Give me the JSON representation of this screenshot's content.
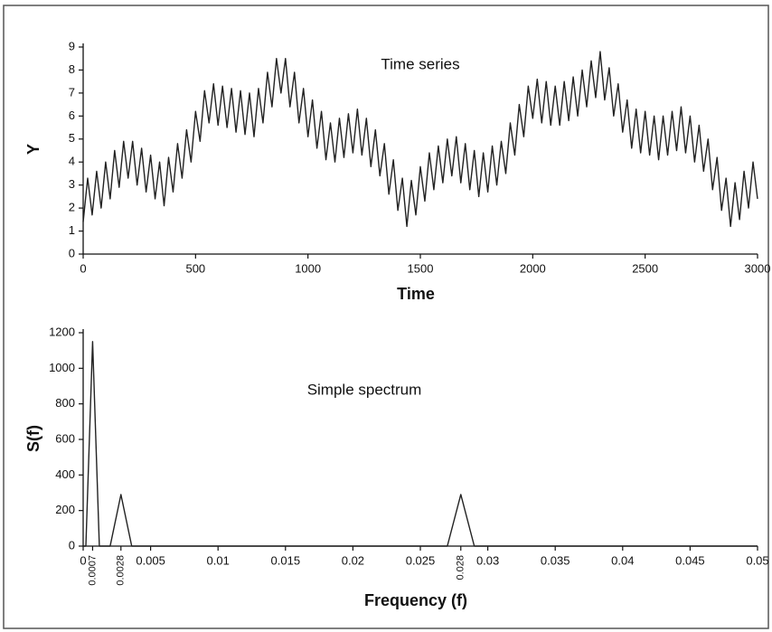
{
  "chart_data": [
    {
      "type": "line",
      "title": "Time series",
      "x_label": "Time",
      "y_label": "Y",
      "xlim": [
        0,
        3000
      ],
      "ylim": [
        0,
        9
      ],
      "xticks": [
        0,
        500,
        1000,
        1500,
        2000,
        2500,
        3000
      ],
      "yticks": [
        0,
        1,
        2,
        3,
        4,
        5,
        6,
        7,
        8,
        9
      ],
      "series": [
        {
          "color": "#222222",
          "x": [
            0,
            20,
            40,
            60,
            80,
            100,
            120,
            140,
            160,
            180,
            200,
            220,
            240,
            260,
            280,
            300,
            320,
            340,
            360,
            380,
            400,
            420,
            440,
            460,
            480,
            500,
            520,
            540,
            560,
            580,
            600,
            620,
            640,
            660,
            680,
            700,
            720,
            740,
            760,
            780,
            800,
            820,
            840,
            860,
            880,
            900,
            920,
            940,
            960,
            980,
            1000,
            1020,
            1040,
            1060,
            1080,
            1100,
            1120,
            1140,
            1160,
            1180,
            1200,
            1220,
            1240,
            1260,
            1280,
            1300,
            1320,
            1340,
            1360,
            1380,
            1400,
            1420,
            1440,
            1460,
            1480,
            1500,
            1520,
            1540,
            1560,
            1580,
            1600,
            1620,
            1640,
            1660,
            1680,
            1700,
            1720,
            1740,
            1760,
            1780,
            1800,
            1820,
            1840,
            1860,
            1880,
            1900,
            1920,
            1940,
            1960,
            1980,
            2000,
            2020,
            2040,
            2060,
            2080,
            2100,
            2120,
            2140,
            2160,
            2180,
            2200,
            2220,
            2240,
            2260,
            2280,
            2300,
            2320,
            2340,
            2360,
            2380,
            2400,
            2420,
            2440,
            2460,
            2480,
            2500,
            2520,
            2540,
            2560,
            2580,
            2600,
            2620,
            2640,
            2660,
            2680,
            2700,
            2720,
            2740,
            2760,
            2780,
            2800,
            2820,
            2840,
            2860,
            2880,
            2900,
            2920,
            2940,
            2960,
            2980,
            3000
          ],
          "values": [
            1.4,
            3.3,
            1.7,
            3.6,
            2.0,
            4.0,
            2.4,
            4.5,
            2.9,
            4.9,
            3.3,
            4.9,
            3.0,
            4.6,
            2.7,
            4.3,
            2.4,
            4.0,
            2.1,
            4.2,
            2.7,
            4.8,
            3.3,
            5.4,
            4.0,
            6.2,
            4.9,
            7.1,
            5.7,
            7.4,
            5.6,
            7.3,
            5.5,
            7.2,
            5.3,
            7.1,
            5.2,
            7.0,
            5.1,
            7.2,
            5.7,
            7.9,
            6.4,
            8.5,
            7.0,
            8.5,
            6.4,
            7.9,
            5.7,
            7.2,
            5.1,
            6.7,
            4.6,
            6.2,
            4.1,
            5.7,
            4.0,
            5.9,
            4.2,
            6.1,
            4.4,
            6.3,
            4.3,
            5.9,
            3.8,
            5.4,
            3.4,
            4.8,
            2.6,
            4.1,
            1.9,
            3.3,
            1.2,
            3.2,
            1.7,
            3.8,
            2.3,
            4.4,
            2.8,
            4.7,
            3.1,
            5.0,
            3.4,
            5.1,
            3.1,
            4.8,
            2.8,
            4.5,
            2.5,
            4.4,
            2.7,
            4.7,
            3.0,
            4.9,
            3.5,
            5.7,
            4.3,
            6.5,
            5.1,
            7.3,
            5.9,
            7.6,
            5.7,
            7.5,
            5.6,
            7.3,
            5.6,
            7.5,
            5.8,
            7.7,
            6.0,
            8.0,
            6.4,
            8.4,
            6.8,
            8.8,
            6.7,
            8.1,
            6.0,
            7.4,
            5.3,
            6.7,
            4.6,
            6.3,
            4.4,
            6.2,
            4.3,
            6.0,
            4.1,
            6.0,
            4.3,
            6.2,
            4.5,
            6.4,
            4.4,
            6.0,
            4.0,
            5.6,
            3.6,
            5.0,
            2.8,
            4.2,
            1.9,
            3.3,
            1.2,
            3.1,
            1.5,
            3.6,
            2.0,
            4.0,
            2.4
          ]
        }
      ]
    },
    {
      "type": "line",
      "title": "Simple spectrum",
      "x_label": "Frequency (f)",
      "y_label": "S(f)",
      "xlim": [
        0,
        0.05
      ],
      "ylim": [
        0,
        1200
      ],
      "xticks": [
        0,
        0.005,
        0.01,
        0.015,
        0.02,
        0.025,
        0.03,
        0.035,
        0.04,
        0.045,
        0.05
      ],
      "peak_ticks": [
        0.0007,
        0.0028,
        0.028
      ],
      "yticks": [
        0,
        200,
        400,
        600,
        800,
        1000,
        1200
      ],
      "series": [
        {
          "color": "#222222",
          "x": [
            0,
            0.0002,
            0.0007,
            0.0012,
            0.002,
            0.0028,
            0.0036,
            0.005,
            0.027,
            0.028,
            0.029,
            0.05
          ],
          "values": [
            0,
            0,
            1150,
            0,
            0,
            290,
            0,
            0,
            0,
            290,
            0,
            0
          ]
        }
      ]
    }
  ]
}
